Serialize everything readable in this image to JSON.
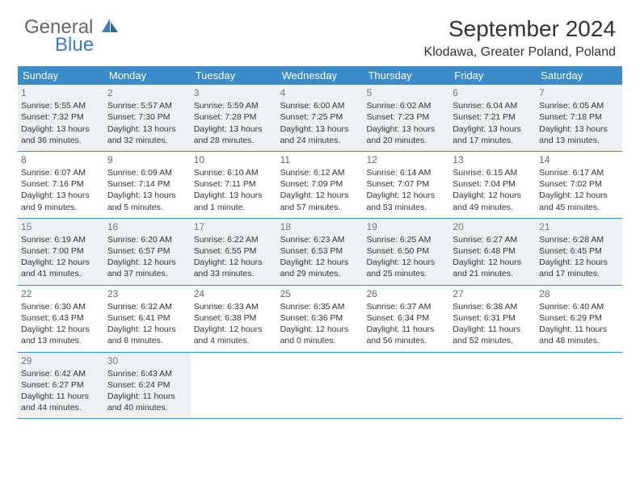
{
  "logo": {
    "word1": "General",
    "word2": "Blue"
  },
  "title": "September 2024",
  "location": "Klodawa, Greater Poland, Poland",
  "colors": {
    "header_bg": "#3a8bc9",
    "header_text": "#ffffff",
    "shaded_bg": "#eef1f3",
    "border": "#3a8bc9",
    "text": "#333333",
    "logo_gray": "#666666",
    "logo_blue": "#3a7ebf"
  },
  "weekdays": [
    "Sunday",
    "Monday",
    "Tuesday",
    "Wednesday",
    "Thursday",
    "Friday",
    "Saturday"
  ],
  "weeks": [
    {
      "shaded": true,
      "days": [
        {
          "n": "1",
          "sr": "5:55 AM",
          "ss": "7:32 PM",
          "dl": "13 hours and 36 minutes."
        },
        {
          "n": "2",
          "sr": "5:57 AM",
          "ss": "7:30 PM",
          "dl": "13 hours and 32 minutes."
        },
        {
          "n": "3",
          "sr": "5:59 AM",
          "ss": "7:28 PM",
          "dl": "13 hours and 28 minutes."
        },
        {
          "n": "4",
          "sr": "6:00 AM",
          "ss": "7:25 PM",
          "dl": "13 hours and 24 minutes."
        },
        {
          "n": "5",
          "sr": "6:02 AM",
          "ss": "7:23 PM",
          "dl": "13 hours and 20 minutes."
        },
        {
          "n": "6",
          "sr": "6:04 AM",
          "ss": "7:21 PM",
          "dl": "13 hours and 17 minutes."
        },
        {
          "n": "7",
          "sr": "6:05 AM",
          "ss": "7:18 PM",
          "dl": "13 hours and 13 minutes."
        }
      ]
    },
    {
      "shaded": false,
      "days": [
        {
          "n": "8",
          "sr": "6:07 AM",
          "ss": "7:16 PM",
          "dl": "13 hours and 9 minutes."
        },
        {
          "n": "9",
          "sr": "6:09 AM",
          "ss": "7:14 PM",
          "dl": "13 hours and 5 minutes."
        },
        {
          "n": "10",
          "sr": "6:10 AM",
          "ss": "7:11 PM",
          "dl": "13 hours and 1 minute."
        },
        {
          "n": "11",
          "sr": "6:12 AM",
          "ss": "7:09 PM",
          "dl": "12 hours and 57 minutes."
        },
        {
          "n": "12",
          "sr": "6:14 AM",
          "ss": "7:07 PM",
          "dl": "12 hours and 53 minutes."
        },
        {
          "n": "13",
          "sr": "6:15 AM",
          "ss": "7:04 PM",
          "dl": "12 hours and 49 minutes."
        },
        {
          "n": "14",
          "sr": "6:17 AM",
          "ss": "7:02 PM",
          "dl": "12 hours and 45 minutes."
        }
      ]
    },
    {
      "shaded": true,
      "days": [
        {
          "n": "15",
          "sr": "6:19 AM",
          "ss": "7:00 PM",
          "dl": "12 hours and 41 minutes."
        },
        {
          "n": "16",
          "sr": "6:20 AM",
          "ss": "6:57 PM",
          "dl": "12 hours and 37 minutes."
        },
        {
          "n": "17",
          "sr": "6:22 AM",
          "ss": "6:55 PM",
          "dl": "12 hours and 33 minutes."
        },
        {
          "n": "18",
          "sr": "6:23 AM",
          "ss": "6:53 PM",
          "dl": "12 hours and 29 minutes."
        },
        {
          "n": "19",
          "sr": "6:25 AM",
          "ss": "6:50 PM",
          "dl": "12 hours and 25 minutes."
        },
        {
          "n": "20",
          "sr": "6:27 AM",
          "ss": "6:48 PM",
          "dl": "12 hours and 21 minutes."
        },
        {
          "n": "21",
          "sr": "6:28 AM",
          "ss": "6:45 PM",
          "dl": "12 hours and 17 minutes."
        }
      ]
    },
    {
      "shaded": false,
      "days": [
        {
          "n": "22",
          "sr": "6:30 AM",
          "ss": "6:43 PM",
          "dl": "12 hours and 13 minutes."
        },
        {
          "n": "23",
          "sr": "6:32 AM",
          "ss": "6:41 PM",
          "dl": "12 hours and 8 minutes."
        },
        {
          "n": "24",
          "sr": "6:33 AM",
          "ss": "6:38 PM",
          "dl": "12 hours and 4 minutes."
        },
        {
          "n": "25",
          "sr": "6:35 AM",
          "ss": "6:36 PM",
          "dl": "12 hours and 0 minutes."
        },
        {
          "n": "26",
          "sr": "6:37 AM",
          "ss": "6:34 PM",
          "dl": "11 hours and 56 minutes."
        },
        {
          "n": "27",
          "sr": "6:38 AM",
          "ss": "6:31 PM",
          "dl": "11 hours and 52 minutes."
        },
        {
          "n": "28",
          "sr": "6:40 AM",
          "ss": "6:29 PM",
          "dl": "11 hours and 48 minutes."
        }
      ]
    },
    {
      "shaded": true,
      "days": [
        {
          "n": "29",
          "sr": "6:42 AM",
          "ss": "6:27 PM",
          "dl": "11 hours and 44 minutes."
        },
        {
          "n": "30",
          "sr": "6:43 AM",
          "ss": "6:24 PM",
          "dl": "11 hours and 40 minutes."
        },
        null,
        null,
        null,
        null,
        null
      ]
    }
  ],
  "labels": {
    "sunrise": "Sunrise:",
    "sunset": "Sunset:",
    "daylight": "Daylight:"
  }
}
